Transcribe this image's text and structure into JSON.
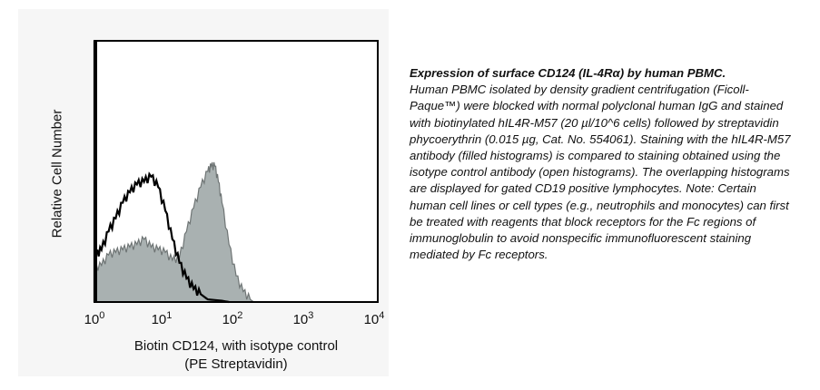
{
  "chart_data": {
    "type": "area",
    "title": "",
    "xlabel": "Biotin CD124, with isotype control",
    "xlabel_line2": "(PE Streptavidin)",
    "ylabel": "Relative Cell Number",
    "xscale": "log",
    "xlim_log10": [
      0,
      4
    ],
    "ylim": [
      0,
      100
    ],
    "x_tick_labels": [
      {
        "base": "10",
        "exp": "0"
      },
      {
        "base": "10",
        "exp": "1"
      },
      {
        "base": "10",
        "exp": "2"
      },
      {
        "base": "10",
        "exp": "3"
      },
      {
        "base": "10",
        "exp": "4"
      }
    ],
    "series": [
      {
        "name": "hIL4R-M57 antibody (filled)",
        "style": "filled",
        "color": "#a9b1b1",
        "edge": "#6f7575",
        "log10_x": [
          0,
          0.1,
          0.2,
          0.3,
          0.4,
          0.5,
          0.6,
          0.7,
          0.8,
          0.9,
          1.0,
          1.1,
          1.2,
          1.3,
          1.4,
          1.5,
          1.6,
          1.65,
          1.7,
          1.75,
          1.8,
          1.9,
          2.0,
          2.1,
          2.2,
          2.25
        ],
        "y": [
          13,
          14,
          18,
          19,
          20,
          21,
          22,
          24,
          21,
          20,
          19,
          16,
          17,
          27,
          36,
          44,
          50,
          52,
          52,
          46,
          38,
          22,
          10,
          4,
          1,
          0
        ]
      },
      {
        "name": "isotype control (open)",
        "style": "open",
        "color": "#000000",
        "log10_x": [
          0,
          0.02,
          0.1,
          0.2,
          0.3,
          0.4,
          0.5,
          0.6,
          0.7,
          0.8,
          0.9,
          1.0,
          1.1,
          1.2,
          1.3,
          1.4,
          1.5,
          1.6,
          1.8,
          1.9
        ],
        "y": [
          100,
          18,
          20,
          27,
          32,
          38,
          42,
          45,
          46,
          48,
          44,
          35,
          24,
          15,
          9,
          5,
          3,
          1,
          0.5,
          0
        ]
      }
    ]
  },
  "caption": {
    "title": "Expression of surface CD124 (IL-4Rα) by human PBMC.",
    "body": "Human PBMC isolated by density gradient centrifugation (Ficoll-Paque™) were blocked with normal polyclonal human IgG and stained with biotinylated hIL4R-M57 (20 µl/10^6 cells) followed by streptavidin phycoerythrin (0.015 µg, Cat. No. 554061). Staining with the hIL4R-M57 antibody (filled histograms) is compared to staining obtained using the isotype control antibody (open histograms). The overlapping histograms are displayed for gated CD19 positive lymphocytes. Note: Certain human cell lines or cell types (e.g., neutrophils and monocytes) can first be treated with reagents that block receptors for the Fc regions of immunoglobulin to avoid nonspecific immunofluorescent staining mediated by Fc receptors."
  }
}
